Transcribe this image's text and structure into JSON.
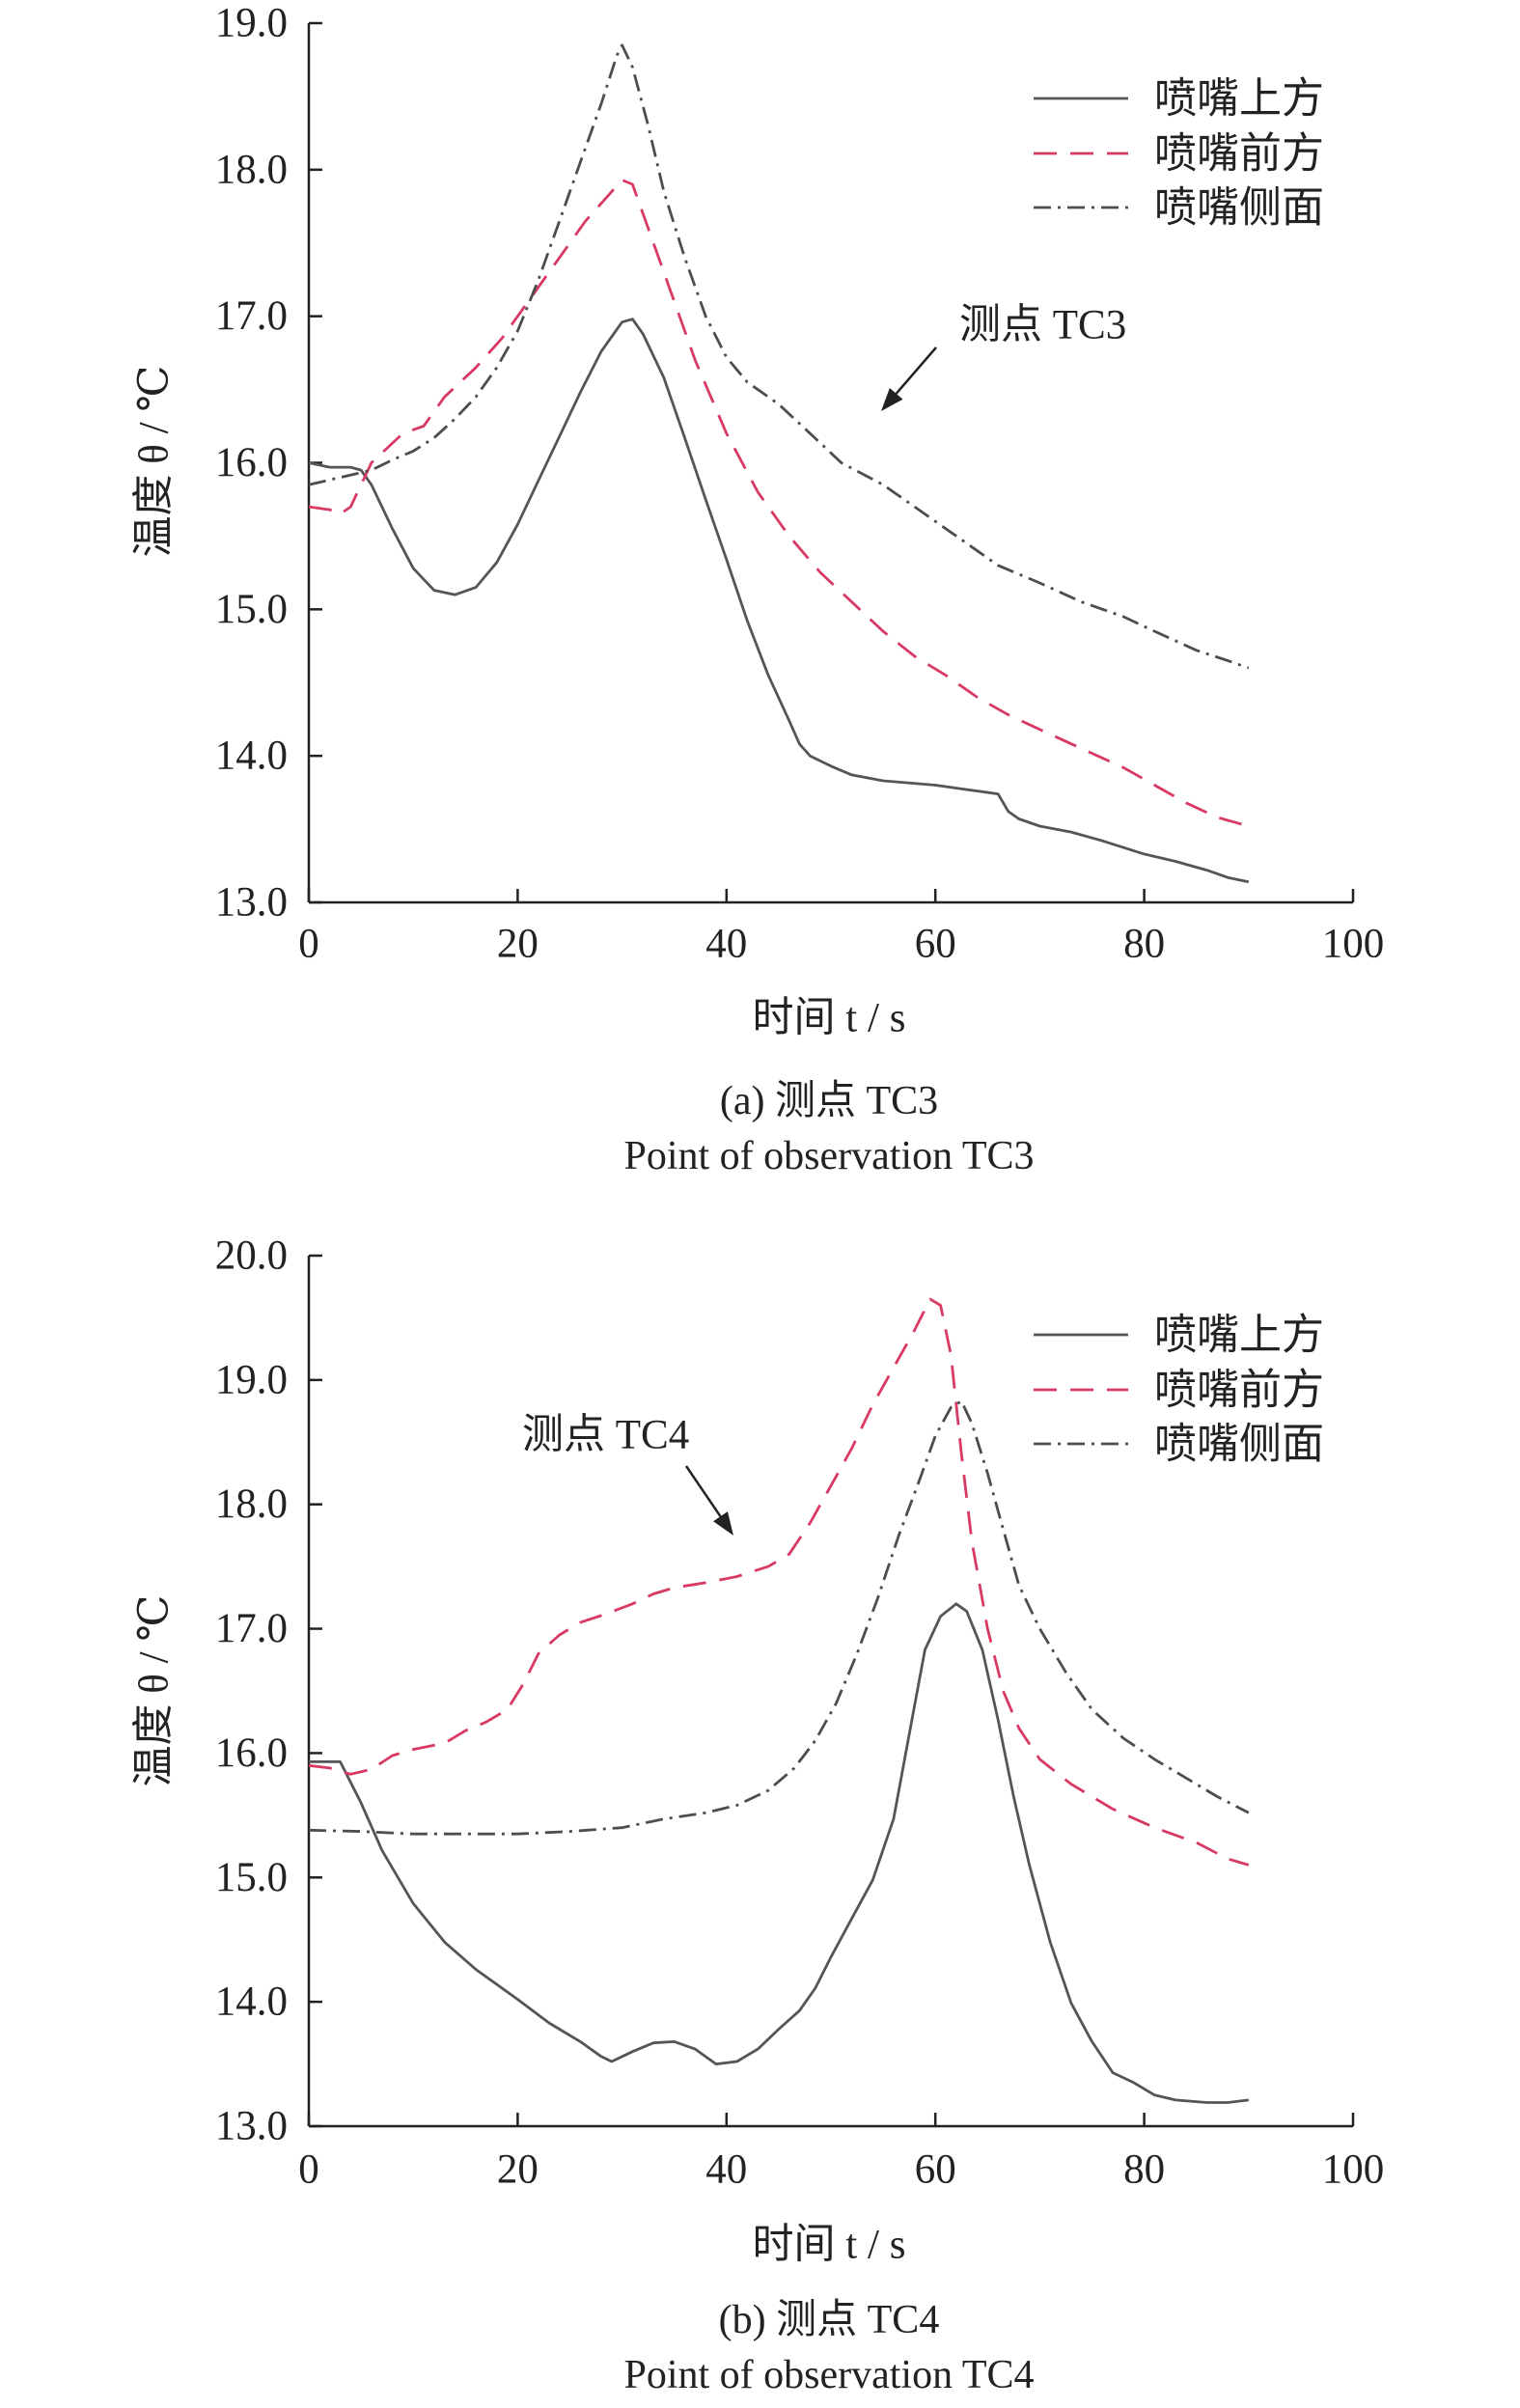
{
  "chart_data": [
    {
      "type": "line",
      "title": "",
      "xlabel": "时间 t / s",
      "ylabel": "温度 θ / ℃",
      "xlim": [
        0,
        100
      ],
      "ylim": [
        13.0,
        19.0
      ],
      "xticks": [
        "0",
        "20",
        "40",
        "60",
        "80",
        "100"
      ],
      "yticks": [
        "13.0",
        "14.0",
        "15.0",
        "16.0",
        "17.0",
        "18.0",
        "19.0"
      ],
      "grid": false,
      "legend_position": "top-right",
      "annotation": "测点 TC3",
      "caption": [
        "(a) 测点 TC3",
        "Point of observation TC3"
      ],
      "series": [
        {
          "name": "喷嘴上方",
          "line_style": "solid",
          "color": "#555555",
          "x": [
            0,
            2,
            4,
            5,
            6,
            8,
            10,
            12,
            14,
            16,
            18,
            20,
            22,
            24,
            26,
            28,
            30,
            31,
            32,
            34,
            36,
            38,
            40,
            42,
            44,
            46,
            47,
            48,
            50,
            52,
            55,
            60,
            63,
            66,
            67,
            68,
            70,
            73,
            76,
            80,
            83,
            86,
            88,
            90
          ],
          "y": [
            16.0,
            15.97,
            15.97,
            15.95,
            15.85,
            15.55,
            15.28,
            15.13,
            15.1,
            15.15,
            15.32,
            15.58,
            15.88,
            16.18,
            16.48,
            16.76,
            16.96,
            16.98,
            16.88,
            16.58,
            16.17,
            15.75,
            15.34,
            14.92,
            14.55,
            14.24,
            14.08,
            14.0,
            13.93,
            13.87,
            13.83,
            13.8,
            13.77,
            13.74,
            13.62,
            13.57,
            13.52,
            13.48,
            13.42,
            13.33,
            13.28,
            13.22,
            13.17,
            13.14
          ]
        },
        {
          "name": "喷嘴前方",
          "line_style": "dashed",
          "color": "#d83a64",
          "x": [
            0,
            2,
            3,
            4,
            6,
            9,
            11,
            13,
            16,
            18.5,
            21,
            24,
            26.5,
            29,
            30,
            31,
            32.5,
            34.5,
            37,
            40,
            43,
            46,
            49,
            52,
            55,
            58,
            61,
            64,
            67,
            70,
            74,
            78,
            81,
            84,
            87,
            90
          ],
          "y": [
            15.7,
            15.68,
            15.65,
            15.7,
            16.0,
            16.2,
            16.25,
            16.45,
            16.65,
            16.85,
            17.1,
            17.4,
            17.65,
            17.85,
            17.93,
            17.9,
            17.6,
            17.2,
            16.7,
            16.2,
            15.8,
            15.5,
            15.25,
            15.05,
            14.85,
            14.68,
            14.55,
            14.4,
            14.28,
            14.18,
            14.05,
            13.92,
            13.8,
            13.68,
            13.58,
            13.52
          ]
        },
        {
          "name": "喷嘴侧面",
          "line_style": "dash-dot",
          "color": "#4d4d4d",
          "x": [
            0,
            3,
            6,
            8,
            10,
            12,
            14,
            16,
            18,
            20,
            22,
            24,
            26,
            28,
            29.5,
            30,
            31,
            32.5,
            34,
            36,
            38,
            40,
            42,
            45,
            48,
            51,
            55,
            59,
            63,
            66,
            70,
            74,
            78,
            81,
            85,
            88,
            90
          ],
          "y": [
            15.85,
            15.9,
            15.95,
            16.02,
            16.08,
            16.17,
            16.3,
            16.45,
            16.65,
            16.9,
            17.25,
            17.65,
            18.05,
            18.45,
            18.78,
            18.85,
            18.7,
            18.3,
            17.85,
            17.4,
            17.0,
            16.72,
            16.55,
            16.4,
            16.2,
            16.0,
            15.85,
            15.65,
            15.45,
            15.3,
            15.18,
            15.05,
            14.95,
            14.85,
            14.72,
            14.65,
            14.6
          ]
        }
      ]
    },
    {
      "type": "line",
      "title": "",
      "xlabel": "时间 t / s",
      "ylabel": "温度 θ / ℃",
      "xlim": [
        0,
        100
      ],
      "ylim": [
        13.0,
        20.0
      ],
      "xticks": [
        "0",
        "20",
        "40",
        "60",
        "80",
        "100"
      ],
      "yticks": [
        "13.0",
        "14.0",
        "15.0",
        "16.0",
        "17.0",
        "18.0",
        "19.0",
        "20.0"
      ],
      "grid": false,
      "legend_position": "top-right",
      "annotation": "测点 TC4",
      "caption": [
        "(b) 测点 TC4",
        "Point of observation TC4"
      ],
      "series": [
        {
          "name": "喷嘴上方",
          "line_style": "solid",
          "color": "#555555",
          "x": [
            0,
            3,
            5,
            7,
            10,
            13,
            16,
            20,
            23,
            26,
            28,
            29,
            31,
            33,
            35,
            37,
            39,
            41,
            43,
            45,
            47,
            48.5,
            50,
            52,
            54,
            56,
            57.5,
            59,
            60.5,
            62,
            63,
            64.5,
            66,
            67.5,
            69,
            71,
            73,
            75,
            77,
            79,
            81,
            83,
            86,
            88,
            90
          ],
          "y": [
            15.93,
            15.93,
            15.6,
            15.22,
            14.79,
            14.48,
            14.26,
            14.02,
            13.83,
            13.68,
            13.56,
            13.52,
            13.6,
            13.67,
            13.68,
            13.62,
            13.5,
            13.52,
            13.62,
            13.78,
            13.93,
            14.11,
            14.36,
            14.67,
            14.98,
            15.47,
            16.15,
            16.83,
            17.1,
            17.2,
            17.14,
            16.83,
            16.27,
            15.65,
            15.1,
            14.48,
            13.99,
            13.68,
            13.43,
            13.35,
            13.25,
            13.21,
            13.19,
            13.19,
            13.21
          ]
        },
        {
          "name": "喷嘴前方",
          "line_style": "dashed",
          "color": "#d83a64",
          "x": [
            0,
            2,
            4,
            6,
            8,
            10,
            13,
            15,
            17,
            19,
            20.5,
            22,
            24,
            26,
            28.5,
            31,
            33,
            35,
            38,
            41,
            44,
            46,
            48,
            50,
            52,
            54,
            56,
            58,
            59.5,
            60.5,
            61.5,
            62.5,
            63.5,
            65,
            66.5,
            68,
            70,
            73,
            77,
            81,
            85,
            88,
            90
          ],
          "y": [
            15.9,
            15.88,
            15.83,
            15.87,
            15.98,
            16.03,
            16.08,
            16.18,
            16.25,
            16.35,
            16.55,
            16.8,
            16.95,
            17.05,
            17.12,
            17.2,
            17.28,
            17.33,
            17.37,
            17.42,
            17.5,
            17.6,
            17.85,
            18.15,
            18.45,
            18.8,
            19.1,
            19.4,
            19.65,
            19.6,
            19.2,
            18.4,
            17.7,
            17.0,
            16.5,
            16.2,
            15.95,
            15.75,
            15.55,
            15.4,
            15.28,
            15.15,
            15.1
          ]
        },
        {
          "name": "喷嘴侧面",
          "line_style": "dash-dot",
          "color": "#4d4d4d",
          "x": [
            0,
            5,
            10,
            15,
            20,
            25,
            30,
            34,
            38,
            41,
            44,
            46.5,
            48.5,
            50.5,
            52.5,
            54.5,
            56.5,
            58.5,
            60,
            61.5,
            62.5,
            63.5,
            65,
            66.5,
            68,
            70,
            72.5,
            75,
            78,
            81,
            84,
            87,
            90
          ],
          "y": [
            15.38,
            15.37,
            15.35,
            15.35,
            15.35,
            15.37,
            15.4,
            15.47,
            15.52,
            15.58,
            15.7,
            15.88,
            16.1,
            16.4,
            16.8,
            17.25,
            17.75,
            18.2,
            18.55,
            18.78,
            18.83,
            18.65,
            18.25,
            17.8,
            17.35,
            17.0,
            16.65,
            16.35,
            16.12,
            15.95,
            15.8,
            15.65,
            15.52
          ]
        }
      ]
    }
  ]
}
